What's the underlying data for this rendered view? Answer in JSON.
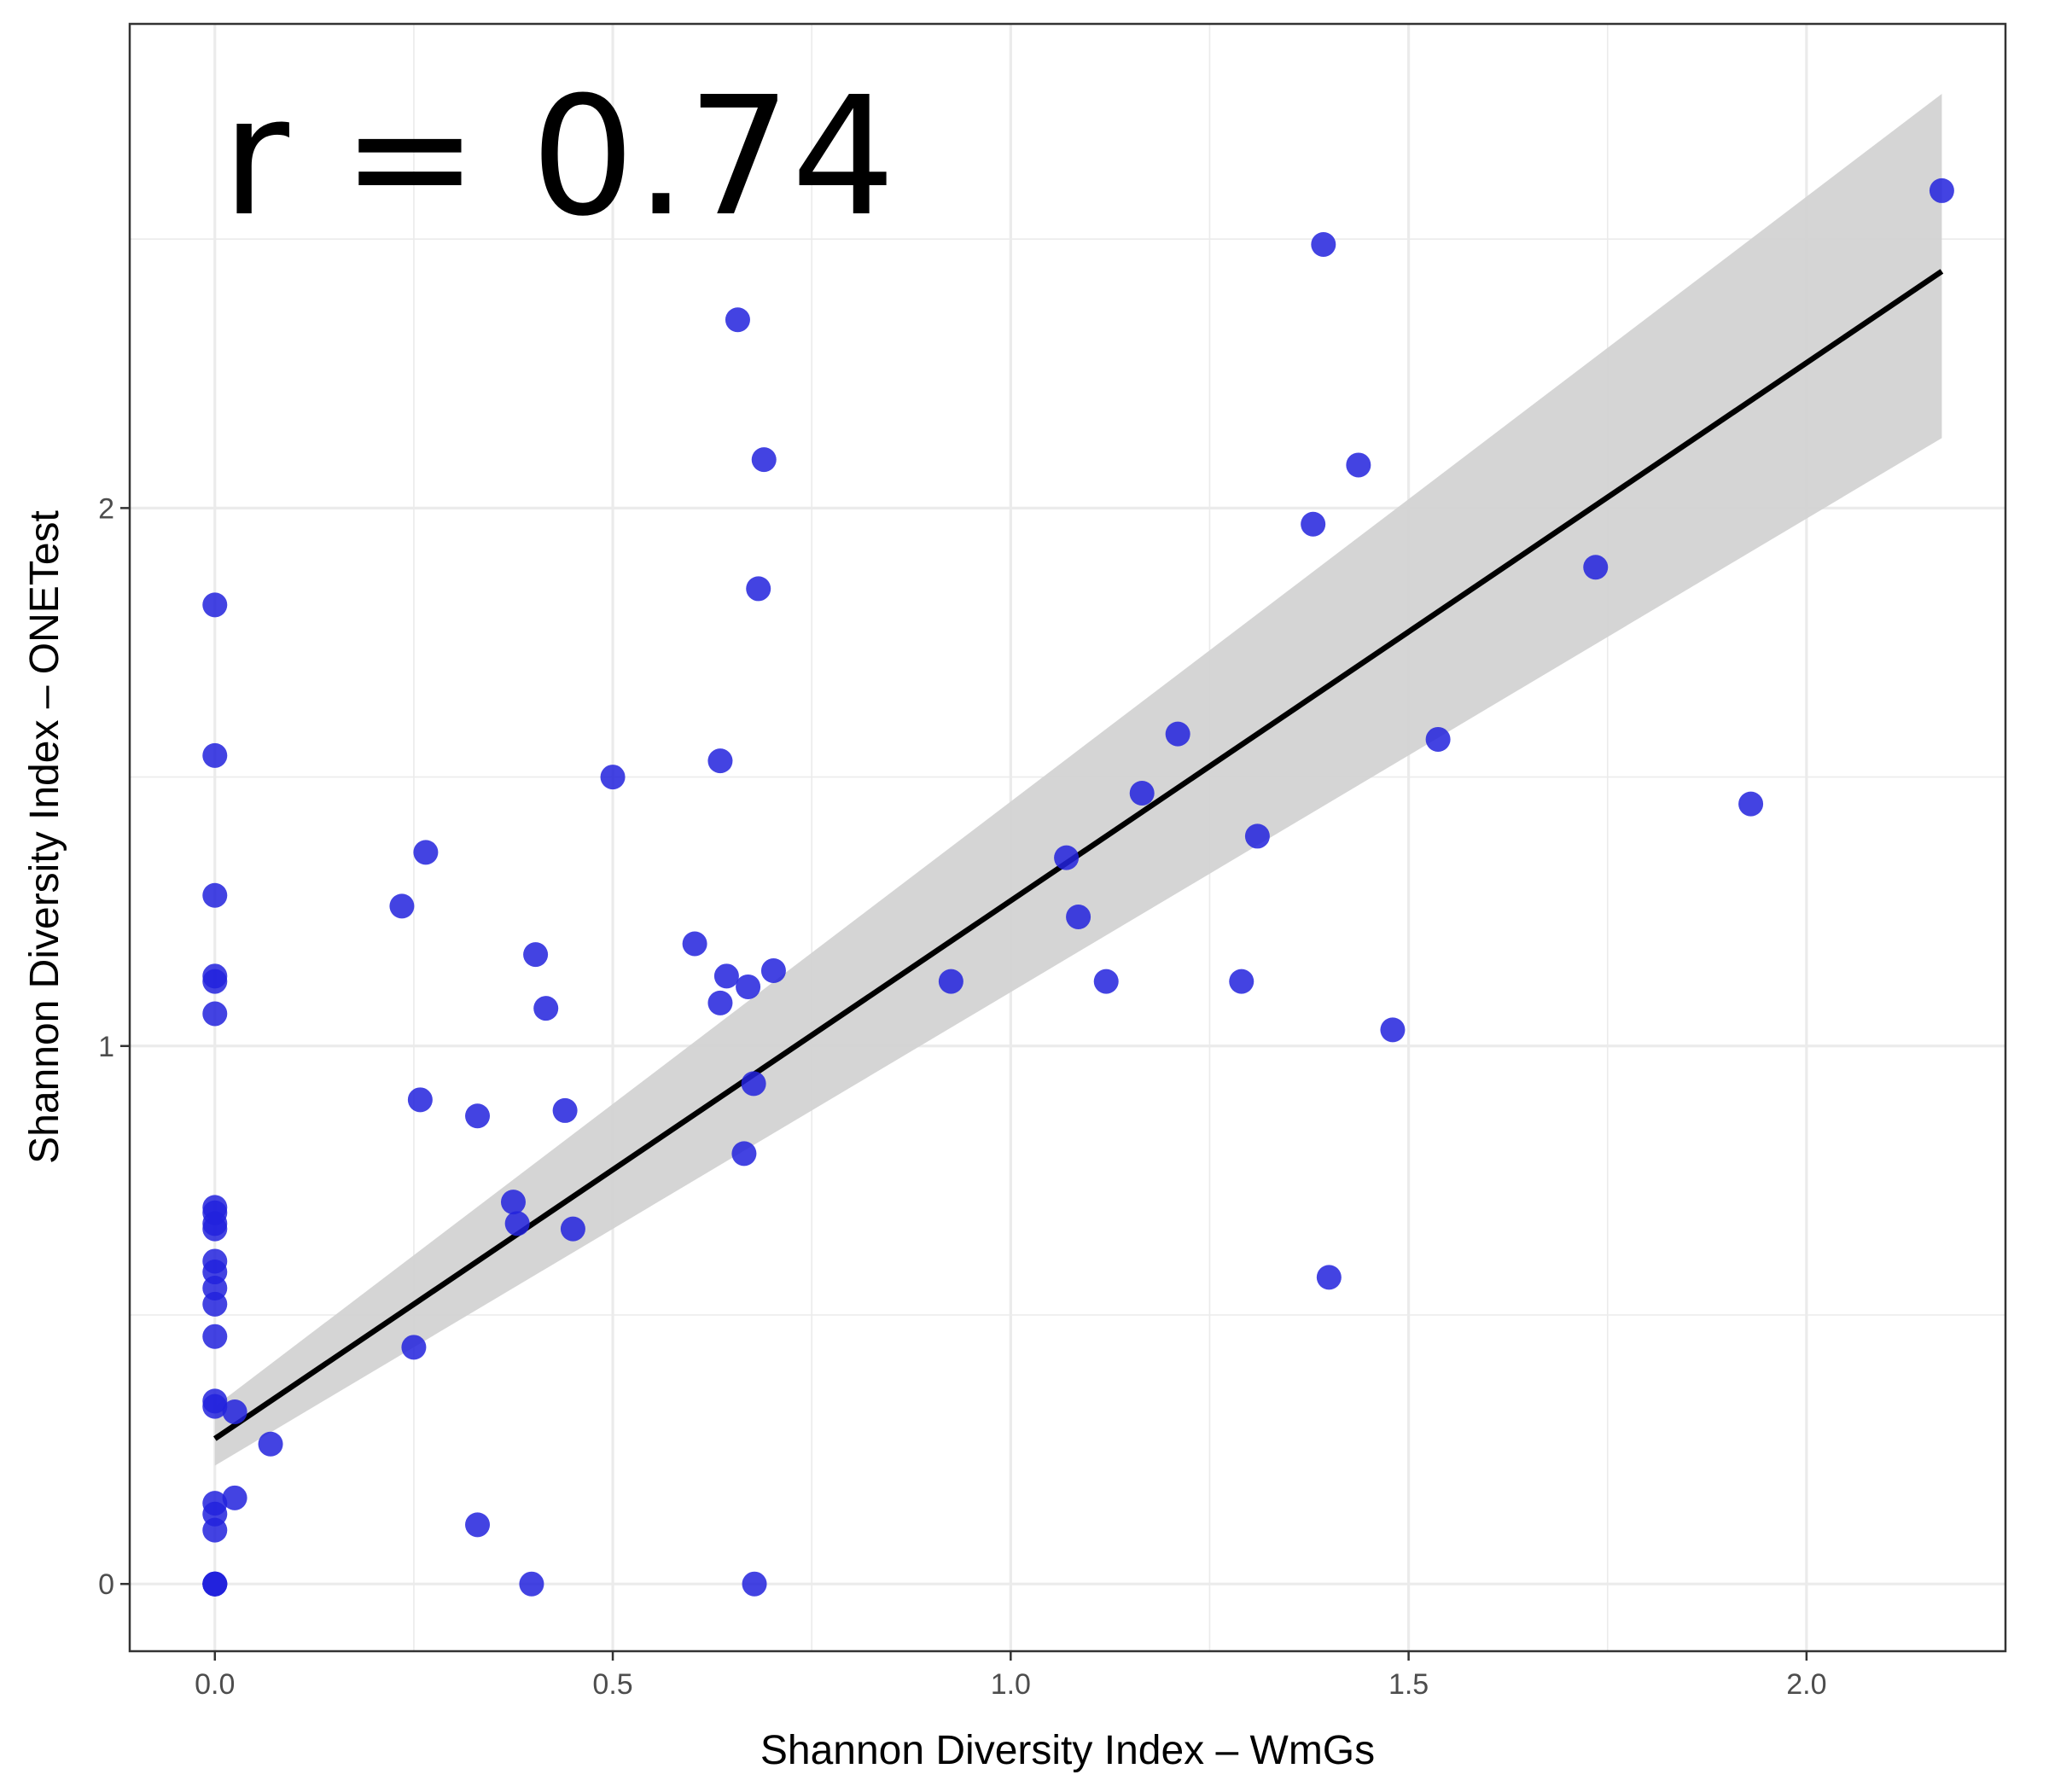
{
  "chart_data": {
    "type": "scatter",
    "title": "",
    "xlabel": "Shannon Diversity Index – WmGs",
    "ylabel": "Shannon Diversity Index – ONETest",
    "xlim": [
      -0.107,
      2.25
    ],
    "ylim": [
      -0.125,
      2.9
    ],
    "x_ticks": [
      0.0,
      0.5,
      1.0,
      1.5,
      2.0
    ],
    "x_tick_labels": [
      "0.0",
      "0.5",
      "1.0",
      "1.5",
      "2.0"
    ],
    "y_ticks": [
      0,
      1,
      2
    ],
    "y_tick_labels": [
      "0",
      "1",
      "2"
    ],
    "grid": true,
    "annotation": "r = 0.74",
    "point_color": "#2222dd",
    "series": [
      {
        "points": [
          [
            0.0,
            0.0
          ],
          [
            0.0,
            0.0
          ],
          [
            0.0,
            0.0
          ],
          [
            0.0,
            0.0
          ],
          [
            0.0,
            0.1
          ],
          [
            0.0,
            0.13
          ],
          [
            0.0,
            0.15
          ],
          [
            0.0,
            0.33
          ],
          [
            0.0,
            0.34
          ],
          [
            0.0,
            0.46
          ],
          [
            0.0,
            0.52
          ],
          [
            0.0,
            0.55
          ],
          [
            0.0,
            0.58
          ],
          [
            0.0,
            0.6
          ],
          [
            0.0,
            0.66
          ],
          [
            0.0,
            0.67
          ],
          [
            0.0,
            0.69
          ],
          [
            0.0,
            0.7
          ],
          [
            0.0,
            1.06
          ],
          [
            0.0,
            1.12
          ],
          [
            0.0,
            1.13
          ],
          [
            0.0,
            1.28
          ],
          [
            0.0,
            1.54
          ],
          [
            0.0,
            1.82
          ],
          [
            0.025,
            0.16
          ],
          [
            0.025,
            0.32
          ],
          [
            0.07,
            0.26
          ],
          [
            0.235,
            1.26
          ],
          [
            0.25,
            0.44
          ],
          [
            0.258,
            0.9
          ],
          [
            0.265,
            1.36
          ],
          [
            0.33,
            0.87
          ],
          [
            0.33,
            0.11
          ],
          [
            0.375,
            0.71
          ],
          [
            0.38,
            0.67
          ],
          [
            0.398,
            0.0
          ],
          [
            0.403,
            1.17
          ],
          [
            0.416,
            1.07
          ],
          [
            0.44,
            0.88
          ],
          [
            0.45,
            0.66
          ],
          [
            0.5,
            1.5
          ],
          [
            0.603,
            1.19
          ],
          [
            0.635,
            1.53
          ],
          [
            0.635,
            1.08
          ],
          [
            0.643,
            1.13
          ],
          [
            0.657,
            2.35
          ],
          [
            0.665,
            0.8
          ],
          [
            0.67,
            1.11
          ],
          [
            0.677,
            0.93
          ],
          [
            0.678,
            0.0
          ],
          [
            0.683,
            1.85
          ],
          [
            0.69,
            2.09
          ],
          [
            0.702,
            1.14
          ],
          [
            0.925,
            1.12
          ],
          [
            1.07,
            1.35
          ],
          [
            1.085,
            1.24
          ],
          [
            1.12,
            1.12
          ],
          [
            1.165,
            1.47
          ],
          [
            1.21,
            1.58
          ],
          [
            1.29,
            1.12
          ],
          [
            1.31,
            1.39
          ],
          [
            1.38,
            1.97
          ],
          [
            1.393,
            2.49
          ],
          [
            1.4,
            0.57
          ],
          [
            1.437,
            2.08
          ],
          [
            1.48,
            1.03
          ],
          [
            1.537,
            1.57
          ],
          [
            1.735,
            1.89
          ],
          [
            1.93,
            1.45
          ],
          [
            2.17,
            2.59
          ]
        ]
      }
    ],
    "regression": {
      "x_range": [
        0.0,
        2.17
      ],
      "intercept": 0.27,
      "slope": 1.0,
      "ci_lower": [
        0.22,
        2.13
      ],
      "ci_upper": [
        0.33,
        2.77
      ],
      "line_color": "#000000",
      "band_color": "#d3d3d3"
    }
  }
}
